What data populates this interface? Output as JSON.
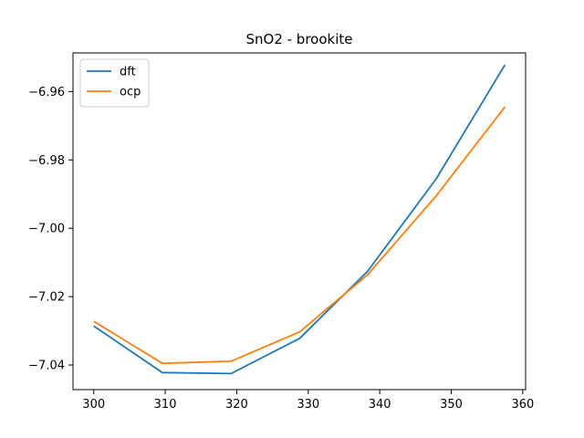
{
  "chart_data": {
    "type": "line",
    "title": "SnO2 - brookite",
    "xlabel": "",
    "ylabel": "",
    "xlim": [
      297.1,
      360.4
    ],
    "ylim": [
      -7.0472,
      -6.9487
    ],
    "xticks": [
      300,
      310,
      320,
      330,
      340,
      350,
      360
    ],
    "xtick_labels": [
      "300",
      "310",
      "320",
      "330",
      "340",
      "350",
      "360"
    ],
    "yticks": [
      -7.04,
      -7.02,
      -7.0,
      -6.98,
      -6.96
    ],
    "ytick_labels": [
      "−7.04",
      "−7.02",
      "−7.00",
      "−6.98",
      "−6.96"
    ],
    "legend_position": "top-left",
    "x": [
      300.0,
      309.6,
      319.2,
      328.8,
      338.3,
      347.9,
      357.5
    ],
    "series": [
      {
        "name": "dft",
        "color": "#1f77b4",
        "values": [
          -7.0286,
          -7.0422,
          -7.0425,
          -7.0322,
          -7.0126,
          -6.9855,
          -6.9522
        ]
      },
      {
        "name": "ocp",
        "color": "#ff7f0e",
        "values": [
          -7.0272,
          -7.0395,
          -7.0389,
          -7.0303,
          -7.0136,
          -6.9905,
          -6.9645
        ]
      }
    ]
  }
}
